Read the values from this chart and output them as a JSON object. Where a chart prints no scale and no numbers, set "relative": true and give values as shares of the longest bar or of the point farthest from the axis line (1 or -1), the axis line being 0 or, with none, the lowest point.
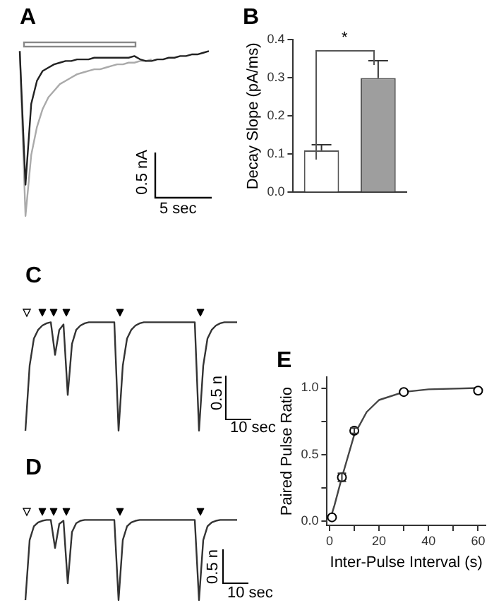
{
  "chart_data": [
    {
      "type": "line",
      "title": "A",
      "relative": true,
      "categories": [
        null,
        null,
        null,
        null,
        null,
        null,
        null,
        null,
        null,
        null,
        null,
        null,
        null,
        null,
        null,
        null,
        null,
        null,
        null,
        null,
        null,
        null,
        null,
        null,
        null,
        null,
        null,
        null,
        null,
        null,
        null,
        null,
        null,
        null
      ],
      "series": [
        {
          "color": "#222222",
          "values": [
            1.0,
            0.19,
            0.68,
            0.82,
            0.88,
            0.9,
            0.92,
            0.93,
            0.94,
            0.94,
            0.95,
            0.95,
            0.95,
            0.96,
            0.96,
            0.96,
            0.96,
            0.96,
            0.96,
            0.96,
            0.97,
            0.95,
            0.94,
            0.94,
            0.95,
            0.95,
            0.96,
            0.96,
            0.97,
            0.97,
            0.98,
            0.98,
            0.99,
            1.0
          ]
        },
        {
          "color": "#aaaaaa",
          "values": [
            1.0,
            0,
            0.37,
            0.54,
            0.65,
            0.72,
            0.76,
            0.8,
            0.82,
            0.84,
            0.86,
            0.87,
            0.88,
            0.89,
            0.89,
            0.9,
            0.91,
            0.92,
            0.92,
            0.93,
            0.93,
            0.94,
            0.94,
            0.95,
            null,
            null,
            null,
            null,
            null,
            null,
            null,
            null,
            null,
            null
          ]
        }
      ],
      "annotations": [
        "0.5 nA",
        "5 sec"
      ]
    },
    {
      "type": "bar",
      "title": "B",
      "categories": [
        null,
        null
      ],
      "values": [
        0.11,
        0.3
      ],
      "colors": [
        "#ffffff",
        "#9e9e9e"
      ],
      "errors": [
        [
          0.11,
          0.125
        ],
        [
          0.3,
          0.345
        ]
      ],
      "ylim": [
        0,
        0.4
      ],
      "yticks": [
        {
          "value": 0,
          "label": "0.0"
        },
        {
          "value": 0.1,
          "label": "0.1"
        },
        {
          "value": 0.2,
          "label": "0.2"
        },
        {
          "value": 0.3,
          "label": "0.3"
        },
        {
          "value": 0.4,
          "label": "0.4"
        }
      ],
      "ylabel": "Decay Slope (pA/ms)",
      "annotations": [
        "*"
      ]
    },
    {
      "type": "line",
      "title": "C",
      "relative": true,
      "categories": [
        null,
        null,
        null,
        null,
        null,
        null,
        null,
        null,
        null,
        null,
        null,
        null,
        null,
        null,
        null,
        null,
        null,
        null,
        null,
        null,
        null,
        null,
        null,
        null,
        null,
        null,
        null,
        null,
        null,
        null,
        null,
        null,
        null,
        null,
        null,
        null,
        null,
        null,
        null,
        null,
        null,
        null,
        null,
        null,
        null,
        null,
        null,
        null,
        null,
        null,
        null
      ],
      "series": [
        {
          "color": "#333333",
          "values": [
            0,
            0.6,
            0.85,
            0.93,
            0.97,
            0.99,
            1,
            0.7,
            0.93,
            0.98,
            0.33,
            0.8,
            0.93,
            0.97,
            0.99,
            1,
            1,
            1,
            1,
            1,
            1,
            1,
            0,
            0.6,
            0.85,
            0.93,
            0.97,
            0.99,
            1,
            1,
            1,
            1,
            1,
            1,
            1,
            1,
            1,
            1,
            1,
            1,
            1,
            0,
            0.6,
            0.85,
            0.93,
            0.97,
            0.99,
            1,
            1,
            1,
            1
          ]
        }
      ],
      "annotations": [
        "0.5 n",
        "10 sec"
      ]
    },
    {
      "type": "line",
      "title": "D",
      "relative": true,
      "categories": [
        null,
        null,
        null,
        null,
        null,
        null,
        null,
        null,
        null,
        null,
        null,
        null,
        null,
        null,
        null,
        null,
        null,
        null,
        null,
        null,
        null,
        null,
        null,
        null,
        null,
        null,
        null,
        null,
        null,
        null,
        null,
        null,
        null,
        null,
        null,
        null,
        null,
        null,
        null,
        null,
        null,
        null,
        null,
        null,
        null,
        null,
        null,
        null,
        null,
        null,
        null
      ],
      "series": [
        {
          "color": "#333333",
          "values": [
            0,
            0.75,
            0.92,
            0.97,
            0.99,
            1,
            1,
            0.65,
            0.95,
            0.99,
            0.21,
            0.85,
            0.96,
            0.99,
            1,
            1,
            1,
            1,
            1,
            1,
            1,
            1,
            0,
            0.75,
            0.92,
            0.97,
            0.99,
            1,
            1,
            1,
            1,
            1,
            1,
            1,
            1,
            1,
            1,
            1,
            1,
            1,
            1,
            0,
            0.75,
            0.92,
            0.97,
            0.99,
            1,
            1,
            1,
            1,
            1
          ]
        }
      ],
      "annotations": [
        "0.5 n",
        "10 sec"
      ]
    },
    {
      "type": "scatter",
      "title": "E",
      "xlabel": "Inter-Pulse Interval (s)",
      "ylabel": "Paired Pulse Ratio",
      "marker": "circle",
      "xlim": [
        -1,
        63
      ],
      "xticks": [
        0,
        {
          "value": 10,
          "label": null
        },
        20,
        {
          "value": 30,
          "label": null
        },
        40,
        {
          "value": 50,
          "label": null
        },
        60
      ],
      "ylim": [
        -0.03,
        1.08
      ],
      "yticks": [
        {
          "value": 0,
          "label": "0.0"
        },
        {
          "value": 0.25,
          "label": null
        },
        {
          "value": 0.5,
          "label": "0.5"
        },
        {
          "value": 0.75,
          "label": null
        },
        {
          "value": 1,
          "label": "1.0"
        }
      ],
      "series": [
        {
          "color": "#000000",
          "x": [
            1,
            5,
            10,
            30,
            60
          ],
          "values": [
            0.03,
            0.33,
            0.68,
            0.97,
            0.98
          ],
          "errors": [
            null,
            0.03,
            0.02,
            null,
            null
          ]
        },
        {
          "type": "line",
          "color": "#444444",
          "marker": "none",
          "x": [
            0,
            2,
            5,
            10,
            15,
            20,
            30,
            40,
            60
          ],
          "values": [
            0,
            0.12,
            0.33,
            0.65,
            0.82,
            0.91,
            0.97,
            0.99,
            1.0
          ]
        }
      ]
    }
  ]
}
